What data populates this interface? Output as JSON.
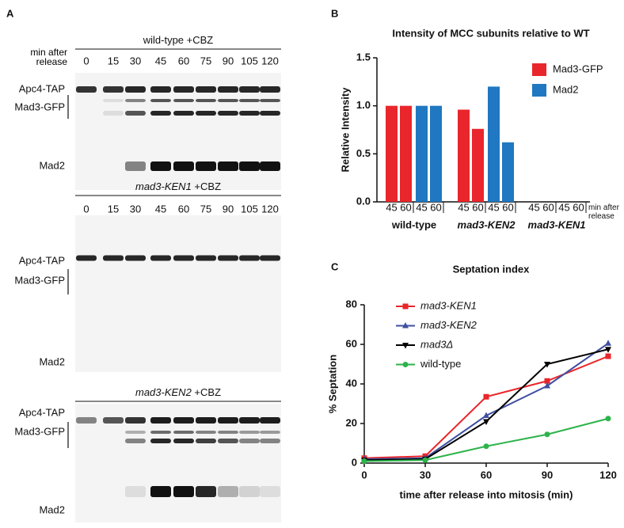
{
  "panel_labels": [
    "A",
    "B",
    "C"
  ],
  "lanes": [
    "0",
    "15",
    "30",
    "45",
    "60",
    "75",
    "90",
    "105",
    "120"
  ],
  "lane_header": "min after release",
  "rows": [
    "Apc4-TAP",
    "Mad3-GFP",
    "Mad2"
  ],
  "blots": [
    {
      "strain": "wild-type",
      "condition": "+CBZ"
    },
    {
      "strain": "mad3-KEN1",
      "condition": "+CBZ"
    },
    {
      "strain": "mad3-KEN2",
      "condition": "+CBZ"
    }
  ],
  "chart_data": [
    {
      "type": "bar",
      "title": "Intensity of MCC subunits relative to WT",
      "ylabel": "Relative Intensity",
      "categories": [
        "wild-type",
        "mad3-KEN2",
        "mad3-KEN1"
      ],
      "subcategories": [
        "45",
        "60"
      ],
      "x_note": "min after release",
      "series": [
        {
          "name": "Mad3-GFP",
          "color": "#e8262b",
          "values": [
            [
              1,
              1
            ],
            [
              0.96,
              0.76
            ],
            [
              0,
              0
            ]
          ]
        },
        {
          "name": "Mad2",
          "color": "#1f78c1",
          "values": [
            [
              1,
              1
            ],
            [
              1.2,
              0.62
            ],
            [
              0,
              0
            ]
          ]
        }
      ],
      "ylim": [
        0,
        1.5
      ],
      "yticks": [
        {
          "value": 0,
          "label": "0.0"
        },
        0.5,
        {
          "value": 1,
          "label": "1.0"
        },
        1.5
      ]
    },
    {
      "type": "line",
      "title": "Septation index",
      "xlabel": "time after release into mitosis (min)",
      "ylabel": "% Septation",
      "x": [
        0,
        30,
        60,
        90,
        120
      ],
      "xlim": [
        0,
        120
      ],
      "xticks": [
        0,
        30,
        60,
        90,
        120
      ],
      "ylim": [
        0,
        80
      ],
      "yticks": [
        0,
        20,
        40,
        60,
        80
      ],
      "series": [
        {
          "name": "mad3-KEN1",
          "italic": true,
          "color": "#e8262b",
          "marker": "square",
          "values": [
            2.5,
            3.5,
            33.5,
            41.5,
            54
          ]
        },
        {
          "name": "mad3-KEN2",
          "italic": true,
          "color": "#3f4fa0",
          "marker": "triangle-up",
          "values": [
            2,
            2.5,
            24,
            39,
            60.5
          ]
        },
        {
          "name": "mad3Δ",
          "italic": true,
          "color": "#000000",
          "marker": "triangle-down",
          "values": [
            1.5,
            2,
            21,
            50,
            57.5
          ]
        },
        {
          "name": "wild-type",
          "italic": false,
          "color": "#2db34a",
          "marker": "circle",
          "values": [
            1,
            1.5,
            8.5,
            14.5,
            22.5
          ]
        }
      ]
    }
  ]
}
